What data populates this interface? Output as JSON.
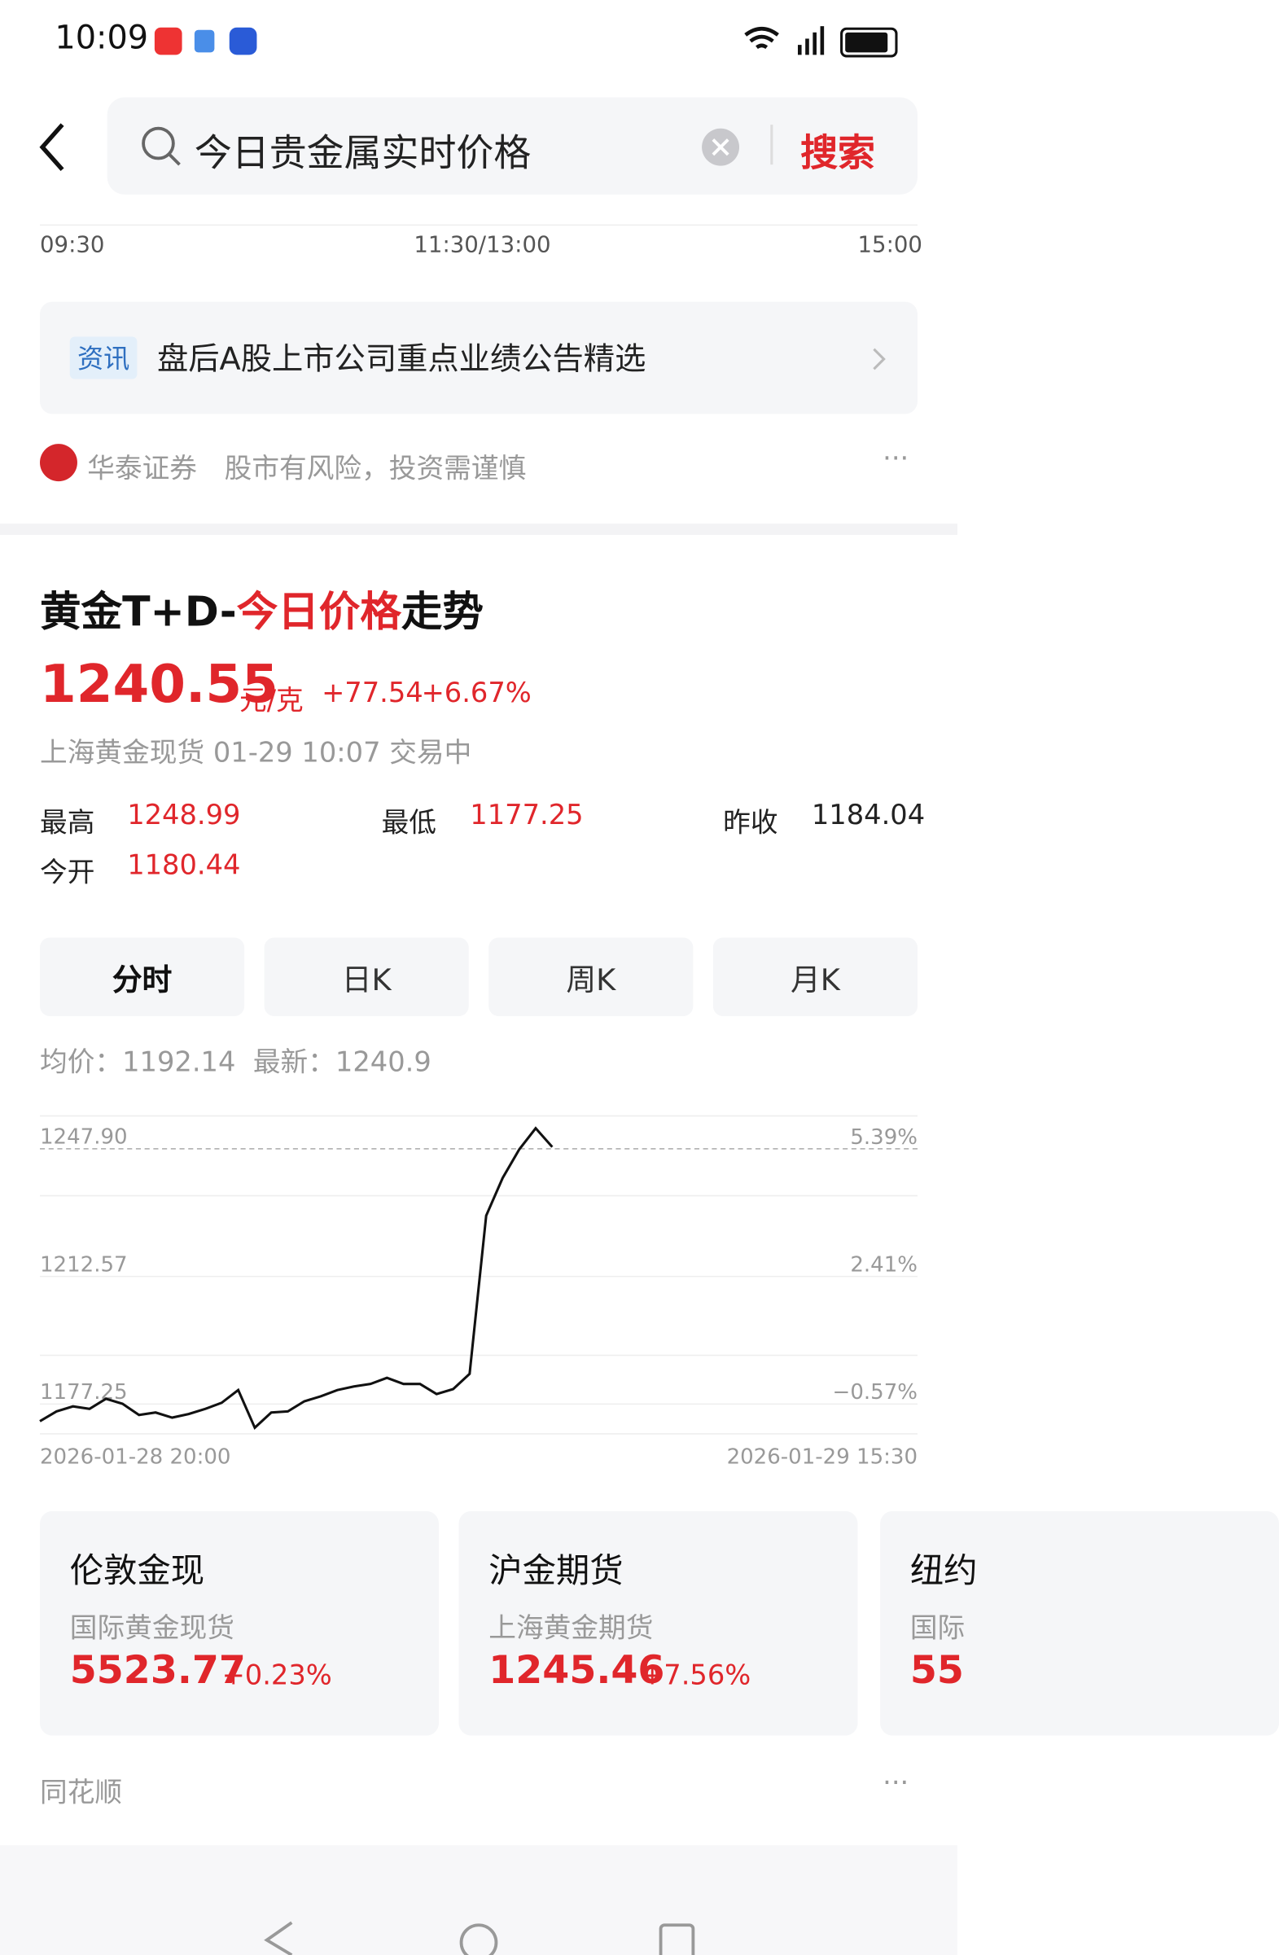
{
  "status_bar": {
    "time": "10:09"
  },
  "search": {
    "query": "今日贵金属实时价格",
    "button": "搜索"
  },
  "prev_chart": {
    "x_labels": [
      "09:30",
      "11:30/13:00",
      "15:00"
    ]
  },
  "news": {
    "tag": "资讯",
    "title": "盘后A股上市公司重点业绩公告精选"
  },
  "source1": {
    "name": "华泰证券",
    "note": "股市有风险，投资需谨慎"
  },
  "card": {
    "title_parts": [
      "黄金T+D-",
      "今日价格",
      "走势"
    ],
    "price": "1240.55",
    "unit": "元/克",
    "change": "+77.54",
    "change_pct": "+6.67%",
    "meta": "上海黄金现货 01-29 10:07 交易中",
    "stats": [
      {
        "label": "最高",
        "value": "1248.99"
      },
      {
        "label": "最低",
        "value": "1177.25"
      },
      {
        "label": "昨收",
        "value": "1184.04"
      },
      {
        "label": "今开",
        "value": "1180.44"
      }
    ],
    "tabs": [
      "分时",
      "日K",
      "周K",
      "月K"
    ],
    "avg": {
      "avg_label": "均价：",
      "avg_value": "1192.14",
      "last_label": "最新：",
      "last_value": "1240.9"
    }
  },
  "chart": {
    "type": "line",
    "color": "#111111",
    "values": [
      1172.5,
      1175.2,
      1176.6,
      1175.9,
      1178.7,
      1177.3,
      1174.2,
      1174.9,
      1173.5,
      1174.5,
      1175.9,
      1177.6,
      1181.1,
      1170.7,
      1174.9,
      1175.2,
      1178.0,
      1179.4,
      1181.1,
      1182.1,
      1182.8,
      1184.5,
      1182.8,
      1182.8,
      1180.0,
      1181.4,
      1185.6,
      1229.4,
      1239.8,
      1247.7,
      1253.6,
      1248.4
    ],
    "ylim": [
      1169,
      1257
    ],
    "yticks": [
      {
        "value": 1247.9,
        "label": "1247.90"
      },
      1212.57,
      1177.25
    ],
    "y2lim": [
      -1.27,
      6.16
    ],
    "y2ticks": [
      {
        "value": 5.39,
        "label": "5.39%"
      },
      {
        "value": 2.41,
        "label": "2.41%"
      },
      {
        "value": -0.57,
        "label": "−0.57%"
      }
    ],
    "x_labels": [
      "2026-01-28 20:00",
      "2026-01-29 15:30"
    ]
  },
  "related": [
    {
      "name": "伦敦金现",
      "sub": "国际黄金现货",
      "price": "5523.77",
      "change": "+0.23%"
    },
    {
      "name": "沪金期货",
      "sub": "上海黄金期货",
      "price": "1245.46",
      "change": "+7.56%"
    },
    {
      "name": "纽约",
      "sub": "国际",
      "price": "55",
      "change": ""
    }
  ],
  "source2": {
    "name": "同花顺"
  }
}
